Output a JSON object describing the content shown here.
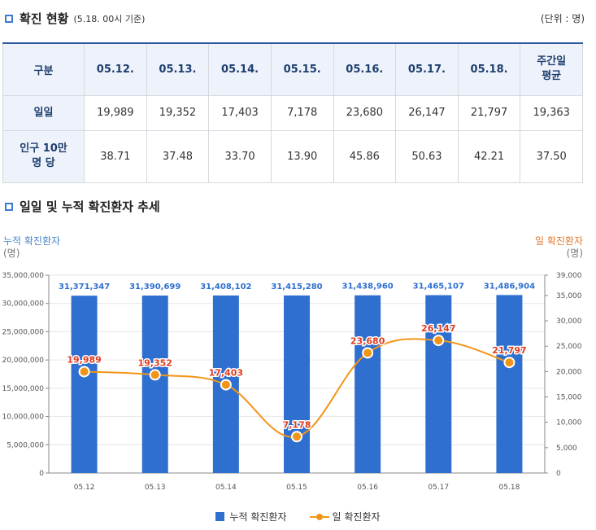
{
  "section1": {
    "title": "확진 현황",
    "subtitle": "(5.18. 00시 기준)",
    "unit": "(단위 : 명)"
  },
  "table": {
    "corner": "구분",
    "dates": [
      "05.12.",
      "05.13.",
      "05.14.",
      "05.15.",
      "05.16.",
      "05.17.",
      "05.18."
    ],
    "avg_header": [
      "주간일",
      "평균"
    ],
    "rows": [
      {
        "label": [
          "일일"
        ],
        "values": [
          "19,989",
          "19,352",
          "17,403",
          "7,178",
          "23,680",
          "26,147",
          "21,797"
        ],
        "avg": "19,363"
      },
      {
        "label": [
          "인구 10만",
          "명 당"
        ],
        "values": [
          "38.71",
          "37.48",
          "33.70",
          "13.90",
          "45.86",
          "50.63",
          "42.21"
        ],
        "avg": "37.50"
      }
    ]
  },
  "section2": {
    "title": "일일 및 누적 확진환자 추세"
  },
  "chart_data": {
    "type": "bar",
    "title": "일일 및 누적 확진환자 추세",
    "categories": [
      "05.12",
      "05.13",
      "05.14",
      "05.15",
      "05.16",
      "05.17",
      "05.18"
    ],
    "series": [
      {
        "name": "누적 확진환자",
        "type": "bar",
        "axis": "left",
        "color": "#2f6fcf",
        "values": [
          31371347,
          31390699,
          31408102,
          31415280,
          31438960,
          31465107,
          31486904
        ],
        "labels": [
          "31,371,347",
          "31,390,699",
          "31,408,102",
          "31,415,280",
          "31,438,960",
          "31,465,107",
          "31,486,904"
        ]
      },
      {
        "name": "일 확진환자",
        "type": "line",
        "axis": "right",
        "color": "#f29517",
        "values": [
          19989,
          19352,
          17403,
          7178,
          23680,
          26147,
          21797
        ],
        "labels": [
          "19,989",
          "19,352",
          "17,403",
          "7,178",
          "23,680",
          "26,147",
          "21,797"
        ]
      }
    ],
    "left_axis": {
      "title": "누적 확진환자",
      "unit": "(명)",
      "min": 0,
      "max": 35000000,
      "ticks": [
        "0",
        "5,000,000",
        "10,000,000",
        "15,000,000",
        "20,000,000",
        "25,000,000",
        "30,000,000",
        "35,000,000"
      ]
    },
    "right_axis": {
      "title": "일 확진환자",
      "unit": "(명)",
      "min": 0,
      "max": 39000,
      "ticks": [
        "0",
        "5,000",
        "10,000",
        "15,000",
        "20,000",
        "25,000",
        "30,000",
        "35,000",
        "39,000"
      ]
    },
    "legend": [
      "누적 확진환자",
      "일 확진환자"
    ],
    "legend_position": "bottom"
  }
}
